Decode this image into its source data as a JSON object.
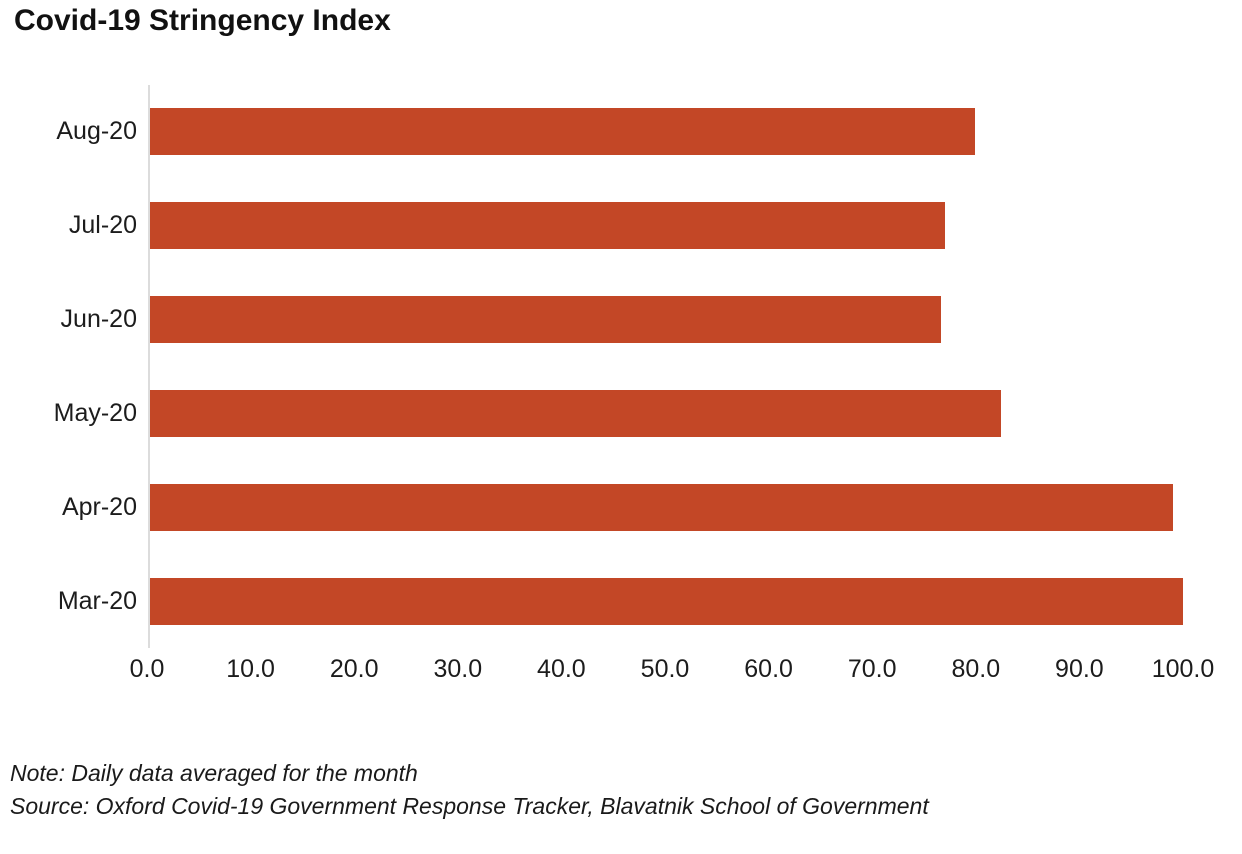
{
  "title": "Covid-19 Stringency Index",
  "note": "Note: Daily data averaged for the month",
  "source": "Source: Oxford Covid-19 Government Response Tracker, Blavatnik School of Government",
  "colors": {
    "bar": "#c34726",
    "axis_line": "#dcdcdc",
    "text": "#1a1a1a"
  },
  "chart_data": {
    "type": "bar",
    "orientation": "horizontal",
    "title": "Covid-19 Stringency Index",
    "xlabel": "",
    "ylabel": "",
    "categories": [
      "Aug-20",
      "Jul-20",
      "Jun-20",
      "May-20",
      "Apr-20",
      "Mar-20"
    ],
    "values": [
      79.9,
      77.0,
      76.6,
      82.4,
      99.0,
      100.0
    ],
    "xlim": [
      0,
      100
    ],
    "x_tick_labels": [
      "0.0",
      "10.0",
      "20.0",
      "30.0",
      "40.0",
      "50.0",
      "60.0",
      "70.0",
      "80.0",
      "90.0",
      "100.0"
    ],
    "x_tick_values": [
      0,
      10,
      20,
      30,
      40,
      50,
      60,
      70,
      80,
      90,
      100
    ],
    "grid": false,
    "legend": null,
    "bar_color": "#c34726"
  }
}
